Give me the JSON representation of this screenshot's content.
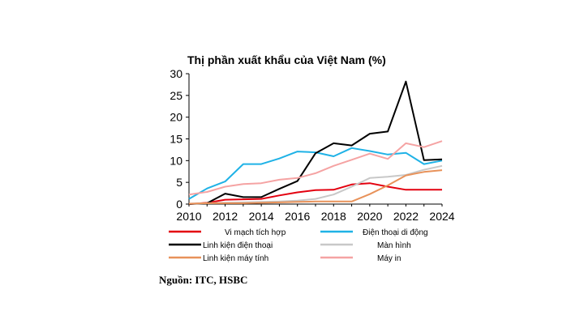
{
  "chart_data": {
    "type": "line",
    "title": "Thị phần xuất khẩu của Việt Nam (%)",
    "xlabel": "",
    "ylabel": "",
    "xlim": [
      2010,
      2024
    ],
    "ylim": [
      0,
      30
    ],
    "x_ticks": [
      2010,
      2012,
      2014,
      2016,
      2018,
      2020,
      2022,
      2024
    ],
    "y_ticks": [
      0,
      5,
      10,
      15,
      20,
      25,
      30
    ],
    "x": [
      2010,
      2011,
      2012,
      2013,
      2014,
      2015,
      2016,
      2017,
      2018,
      2019,
      2020,
      2021,
      2022,
      2023,
      2024
    ],
    "series": [
      {
        "name": "Vi mạch tích hợp",
        "color": "#e3000f",
        "values": [
          0.0,
          0.3,
          1.0,
          1.1,
          1.2,
          2.0,
          2.7,
          3.2,
          3.3,
          4.5,
          4.8,
          4.0,
          3.3,
          3.3,
          3.3
        ]
      },
      {
        "name": "Điện thoại di động",
        "color": "#1fb2e6",
        "values": [
          1.2,
          3.6,
          5.2,
          9.2,
          9.2,
          10.5,
          12.1,
          11.9,
          11.0,
          12.9,
          12.2,
          11.4,
          11.8,
          9.2,
          10.0
        ]
      },
      {
        "name": "Linh kiện điện thoại",
        "color": "#000000",
        "values": [
          0.0,
          0.2,
          2.4,
          1.6,
          1.6,
          3.5,
          5.3,
          11.7,
          14.0,
          13.5,
          16.2,
          16.7,
          28.2,
          10.1,
          10.3
        ]
      },
      {
        "name": "Màn hình",
        "color": "#c8c8c8",
        "values": [
          0.1,
          0.2,
          0.3,
          0.4,
          0.5,
          0.6,
          0.8,
          1.2,
          2.2,
          4.0,
          6.0,
          6.3,
          6.7,
          7.9,
          8.8
        ]
      },
      {
        "name": "Linh kiện máy tính",
        "color": "#e8925a",
        "values": [
          0.1,
          0.2,
          0.2,
          0.2,
          0.3,
          0.4,
          0.5,
          0.6,
          0.6,
          0.6,
          2.3,
          4.3,
          6.6,
          7.4,
          7.8
        ]
      },
      {
        "name": "Máy in",
        "color": "#f5a3a3",
        "values": [
          2.2,
          2.8,
          4.0,
          4.6,
          4.8,
          5.6,
          6.0,
          7.1,
          8.8,
          10.2,
          11.6,
          10.4,
          14.0,
          13.1,
          14.5
        ]
      }
    ],
    "source": "Nguồn: ITC, HSBC"
  }
}
